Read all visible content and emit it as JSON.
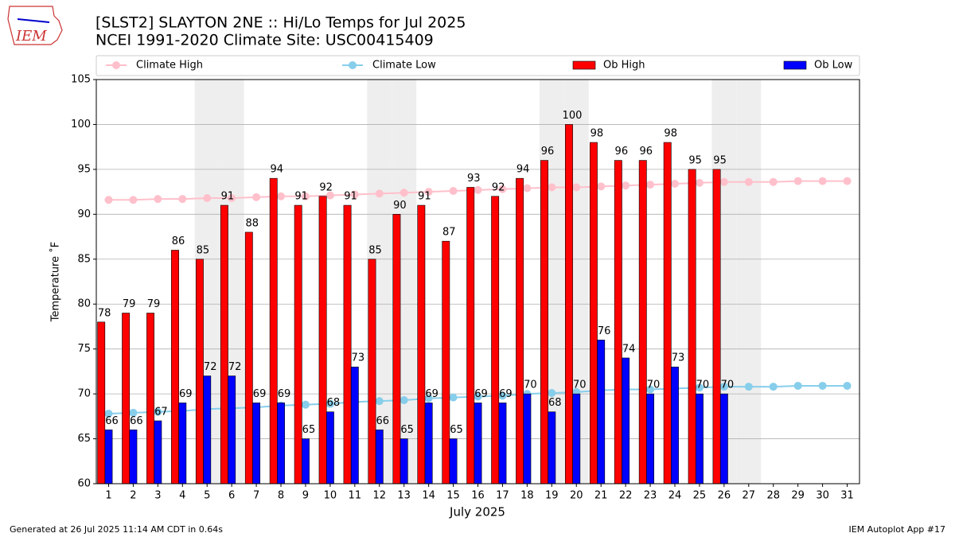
{
  "chart_data": {
    "type": "bar",
    "title": "[SLST2] SLAYTON 2NE :: Hi/Lo Temps for Jul 2025",
    "subtitle": "NCEI 1991-2020 Climate Site: USC00415409",
    "xlabel": "July 2025",
    "ylabel": "Temperature ˚F",
    "logo_text": "IEM",
    "footer_left": "Generated at 26 Jul 2025 11:14 AM CDT in 0.64s",
    "footer_right": "IEM Autoplot App #17",
    "x": [
      1,
      2,
      3,
      4,
      5,
      6,
      7,
      8,
      9,
      10,
      11,
      12,
      13,
      14,
      15,
      16,
      17,
      18,
      19,
      20,
      21,
      22,
      23,
      24,
      25,
      26,
      27,
      28,
      29,
      30,
      31
    ],
    "xlim": [
      0.5,
      31.5
    ],
    "xticks": [
      1,
      2,
      3,
      4,
      5,
      6,
      7,
      8,
      9,
      10,
      11,
      12,
      13,
      14,
      15,
      16,
      17,
      18,
      19,
      20,
      21,
      22,
      23,
      24,
      25,
      26,
      27,
      28,
      29,
      30,
      31
    ],
    "ylim": [
      60,
      105
    ],
    "yticks": [
      60,
      65,
      70,
      75,
      80,
      85,
      90,
      95,
      100,
      105
    ],
    "grid": true,
    "highlight_days": [
      5,
      6,
      12,
      13,
      19,
      20,
      26,
      27
    ],
    "highlight_color": "#eeeeee",
    "legend": "top",
    "series": [
      {
        "name": "Climate High",
        "type": "line",
        "color": "#ffc0cb",
        "values": [
          91.6,
          91.6,
          91.7,
          91.7,
          91.8,
          91.8,
          91.9,
          92.0,
          92.0,
          92.1,
          92.2,
          92.3,
          92.4,
          92.5,
          92.6,
          92.7,
          92.8,
          92.9,
          93.0,
          93.0,
          93.1,
          93.2,
          93.3,
          93.4,
          93.5,
          93.6,
          93.6,
          93.6,
          93.7,
          93.7,
          93.7
        ]
      },
      {
        "name": "Climate Low",
        "type": "line",
        "color": "#87ceeb",
        "values": [
          67.8,
          67.9,
          68.0,
          68.1,
          68.3,
          68.4,
          68.5,
          68.7,
          68.8,
          68.9,
          69.1,
          69.2,
          69.3,
          69.5,
          69.6,
          69.7,
          69.8,
          70.0,
          70.1,
          70.2,
          70.4,
          70.5,
          70.5,
          70.6,
          70.7,
          70.8,
          70.8,
          70.8,
          70.9,
          70.9,
          70.9
        ]
      },
      {
        "name": "Ob High",
        "type": "bar",
        "color": "#ff0000",
        "values": [
          78,
          79,
          79,
          86,
          85,
          91,
          88,
          94,
          91,
          92,
          91,
          85,
          90,
          91,
          87,
          93,
          92,
          94,
          96,
          100,
          98,
          96,
          96,
          98,
          95,
          95,
          null,
          null,
          null,
          null,
          null
        ]
      },
      {
        "name": "Ob Low",
        "type": "bar",
        "color": "#0000ff",
        "values": [
          66,
          66,
          67,
          69,
          72,
          72,
          69,
          69,
          65,
          68,
          73,
          66,
          65,
          69,
          65,
          69,
          69,
          70,
          68,
          70,
          76,
          74,
          70,
          73,
          70,
          70,
          null,
          null,
          null,
          null,
          null
        ]
      }
    ]
  }
}
